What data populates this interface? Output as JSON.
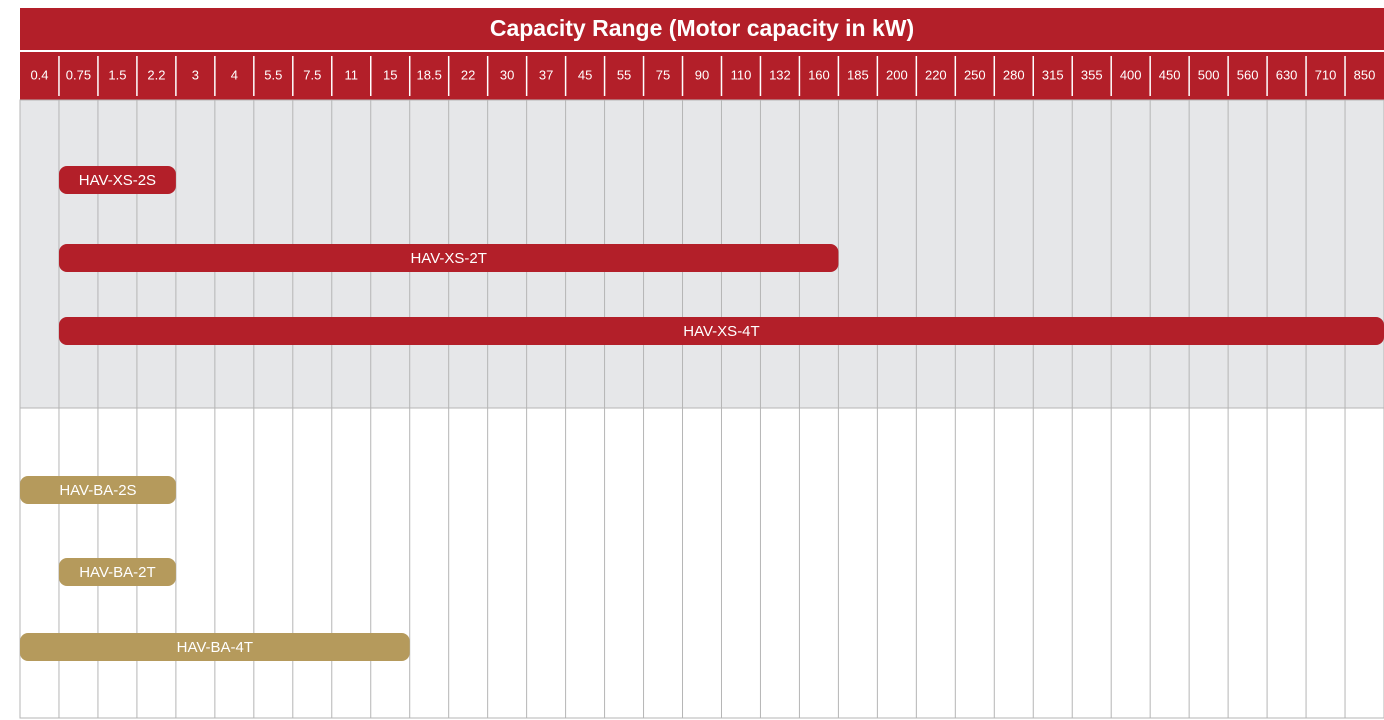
{
  "title": "Capacity Range (Motor capacity in kW)",
  "columns": [
    "0.4",
    "0.75",
    "1.5",
    "2.2",
    "3",
    "4",
    "5.5",
    "7.5",
    "11",
    "15",
    "18.5",
    "22",
    "30",
    "37",
    "45",
    "55",
    "75",
    "90",
    "110",
    "132",
    "160",
    "185",
    "200",
    "220",
    "250",
    "280",
    "315",
    "355",
    "400",
    "450",
    "500",
    "560",
    "630",
    "710",
    "850"
  ],
  "groups": [
    {
      "color": "#b31f29",
      "background": "#e6e7e9",
      "bars": [
        {
          "label": "HAV-XS-2S",
          "from": "0.75",
          "to": "2.2"
        },
        {
          "label": "HAV-XS-2T",
          "from": "0.75",
          "to": "160"
        },
        {
          "label": "HAV-XS-4T",
          "from": "0.75",
          "to": "850"
        }
      ]
    },
    {
      "color": "#b59a5c",
      "background": "#ffffff",
      "bars": [
        {
          "label": "HAV-BA-2S",
          "from": "0.4",
          "to": "2.2"
        },
        {
          "label": "HAV-BA-2T",
          "from": "0.75",
          "to": "2.2"
        },
        {
          "label": "HAV-BA-4T",
          "from": "0.4",
          "to": "15"
        }
      ]
    }
  ]
}
